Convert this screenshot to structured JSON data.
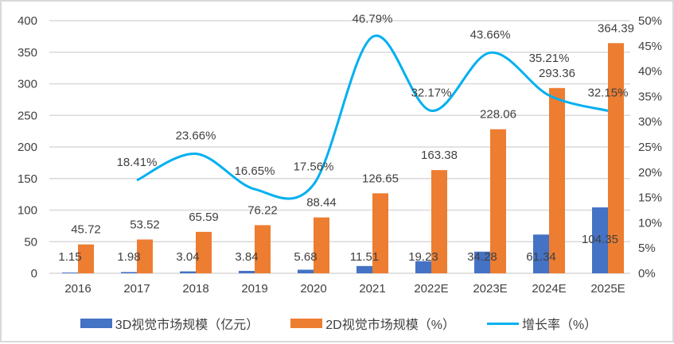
{
  "chart_data": {
    "type": "bar+line",
    "categories": [
      "2016",
      "2017",
      "2018",
      "2019",
      "2020",
      "2021",
      "2022E",
      "2023E",
      "2024E",
      "2025E"
    ],
    "series": [
      {
        "name": "3D视觉市场规模（亿元）",
        "type": "bar",
        "axis": "left",
        "color": "#4472c4",
        "values": [
          1.15,
          1.98,
          3.04,
          3.84,
          5.68,
          11.51,
          19.23,
          34.28,
          61.34,
          104.35
        ],
        "labels": [
          "1.15",
          "1.98",
          "3.04",
          "3.84",
          "5.68",
          "11.51",
          "19.23",
          "34.28",
          "61.34",
          "104.35"
        ]
      },
      {
        "name": "2D视觉市场规模（%）",
        "type": "bar",
        "axis": "left",
        "color": "#ed7d31",
        "values": [
          45.72,
          53.52,
          65.59,
          76.22,
          88.44,
          126.65,
          163.38,
          228.06,
          293.36,
          364.39
        ],
        "labels": [
          "45.72",
          "53.52",
          "65.59",
          "76.22",
          "88.44",
          "126.65",
          "163.38",
          "228.06",
          "293.36",
          "364.39"
        ]
      },
      {
        "name": "增长率（%）",
        "type": "line",
        "axis": "right",
        "color": "#00b0f0",
        "values": [
          null,
          18.41,
          23.66,
          16.65,
          17.56,
          46.79,
          32.17,
          43.66,
          35.21,
          32.15
        ],
        "labels": [
          "",
          "18.41%",
          "23.66%",
          "16.65%",
          "17.56%",
          "46.79%",
          "32.17%",
          "43.66%",
          "35.21%",
          "32.15%"
        ]
      }
    ],
    "y_left": {
      "ylim": [
        0,
        400
      ],
      "ticks": [
        "0",
        "50",
        "100",
        "150",
        "200",
        "250",
        "300",
        "350",
        "400"
      ]
    },
    "y_right": {
      "ylim": [
        0,
        50
      ],
      "ticks": [
        "0%",
        "5%",
        "10%",
        "15%",
        "20%",
        "25%",
        "30%",
        "35%",
        "40%",
        "45%",
        "50%"
      ]
    },
    "grid": true,
    "legend": "bottom"
  }
}
